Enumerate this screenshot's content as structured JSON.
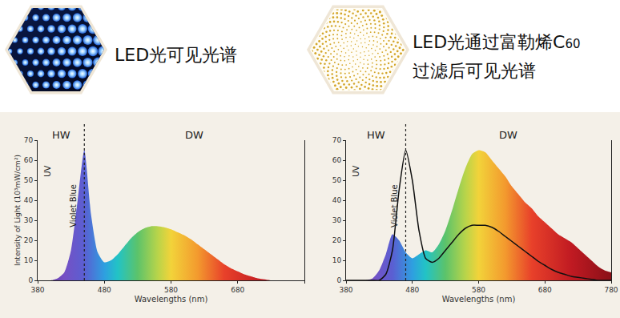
{
  "header": {
    "items": [
      {
        "lines": [
          "LED光可见光谱"
        ]
      },
      {
        "lines": [
          "LED光通过富勒烯C60",
          "过滤后可见光谱"
        ]
      }
    ]
  },
  "chart_data": [
    {
      "type": "area",
      "xlabel": "Wavelengths (nm)",
      "ylabel": "Intensity of Light (10³mW/cm²)",
      "region_labels": [
        "HW",
        "DW"
      ],
      "band_labels": [
        "UV",
        "Violet Blue"
      ],
      "divider_x": 450,
      "x": [
        380,
        390,
        400,
        410,
        420,
        430,
        440,
        450,
        460,
        470,
        480,
        490,
        500,
        510,
        520,
        530,
        540,
        550,
        560,
        570,
        580,
        590,
        600,
        610,
        620,
        630,
        640,
        650,
        660,
        670,
        680,
        690,
        700,
        710,
        720,
        730,
        740,
        750,
        760,
        770,
        780
      ],
      "series": [
        {
          "type": "area",
          "values": [
            0,
            0,
            0,
            1,
            4,
            15,
            40,
            65,
            33,
            14,
            9,
            10,
            13,
            17,
            21,
            24,
            26,
            27,
            27,
            26.5,
            25.5,
            24,
            22.5,
            20.5,
            18,
            15.5,
            13,
            10.5,
            8,
            6,
            4.5,
            3,
            2,
            1,
            0.5,
            0,
            0,
            0,
            0,
            0,
            0
          ]
        }
      ],
      "xlim": [
        380,
        780
      ],
      "xticks": [
        380,
        480,
        580,
        680,
        780
      ],
      "ylim": [
        0,
        70
      ],
      "yticks": [
        0,
        10,
        20,
        30,
        40,
        50,
        60,
        70
      ],
      "grid": false
    },
    {
      "type": "area",
      "xlabel": "Wavelengths (nm)",
      "region_labels": [
        "HW",
        "DW"
      ],
      "band_labels": [
        "UV",
        "Violet Blue"
      ],
      "divider_x": 470,
      "x": [
        380,
        390,
        400,
        410,
        420,
        430,
        440,
        450,
        460,
        470,
        480,
        490,
        500,
        510,
        520,
        530,
        540,
        550,
        560,
        570,
        580,
        590,
        600,
        610,
        620,
        630,
        640,
        650,
        660,
        670,
        680,
        690,
        700,
        710,
        720,
        730,
        740,
        750,
        760,
        770,
        780
      ],
      "series": [
        {
          "type": "area",
          "values": [
            0,
            0,
            0,
            0,
            1,
            5,
            13,
            23,
            20,
            14,
            11,
            13,
            15,
            14,
            18,
            25,
            35,
            46,
            56,
            63,
            65,
            64,
            60,
            56,
            52,
            47,
            43,
            39,
            36,
            32,
            29,
            26,
            23,
            21,
            19,
            16,
            13,
            10,
            7,
            5,
            4
          ]
        },
        {
          "type": "line",
          "color": "#111111",
          "line_style": "solid",
          "values": [
            0,
            0,
            0,
            0,
            0,
            0,
            3,
            15,
            45,
            65,
            50,
            25,
            11,
            9,
            11,
            15,
            19,
            23,
            26,
            27.5,
            27.5,
            27.5,
            26.5,
            24.5,
            22,
            19.5,
            17,
            14.5,
            12,
            9.5,
            7.5,
            5.5,
            4,
            3,
            2,
            1.5,
            1,
            0.5,
            0,
            0,
            0
          ]
        }
      ],
      "xlim": [
        380,
        780
      ],
      "xticks": [
        380,
        480,
        580,
        680,
        780
      ],
      "ylim": [
        0,
        70
      ],
      "yticks": [
        0,
        10,
        20,
        30,
        40,
        50,
        60,
        70
      ],
      "grid": false
    }
  ]
}
